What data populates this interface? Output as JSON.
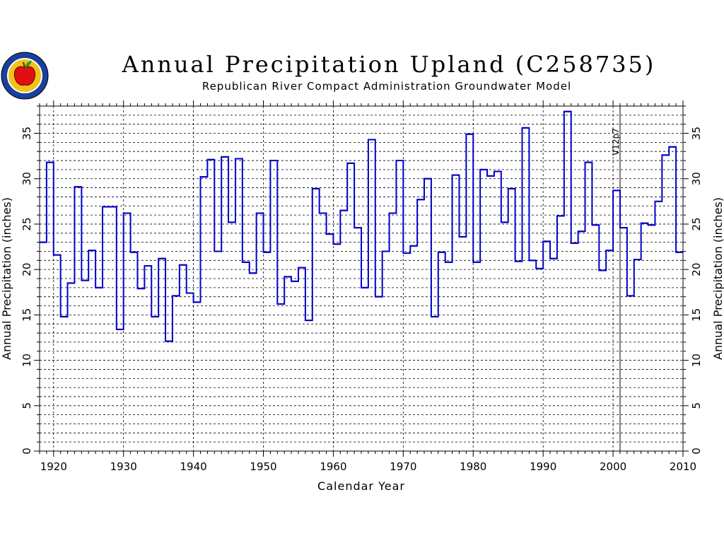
{
  "title": "Annual Precipitation Upland (C258735)",
  "subtitle": "Republican River Compact Administration Groundwater Model",
  "logo": {
    "icon": "apple-seal-icon",
    "apple_color": "#e01010",
    "ring_color": "#1a3f9c",
    "field_color": "#f2c21a"
  },
  "colors": {
    "line": "#0000c8",
    "grid": "#000000"
  },
  "chart_data": {
    "type": "line",
    "style": "step",
    "title": "Annual Precipitation Upland (C258735)",
    "subtitle": "Republican River Compact Administration Groundwater Model",
    "xlabel": "Calendar Year",
    "ylabel_left": "Annual  Precipitation  (inches)",
    "ylabel_right": "Annual  Precipitation  (inches)",
    "xlim": [
      1918,
      2010
    ],
    "ylim": [
      0,
      38
    ],
    "xticks": [
      1920,
      1930,
      1940,
      1950,
      1960,
      1970,
      1980,
      1990,
      2000,
      2010
    ],
    "yticks": [
      0,
      5,
      10,
      15,
      20,
      25,
      30,
      35
    ],
    "x_minor_gridlines": [
      1920,
      1930,
      1940,
      1950,
      1960,
      1970,
      1980,
      1990,
      2000,
      2010
    ],
    "y_gridline_step": 1,
    "grid": true,
    "annotation": {
      "label": "V12p7",
      "x": 2001
    },
    "series": [
      {
        "x": [
          1918,
          1919,
          1920,
          1921,
          1922,
          1923,
          1924,
          1925,
          1926,
          1927,
          1928,
          1929,
          1930,
          1931,
          1932,
          1933,
          1934,
          1935,
          1936,
          1937,
          1938,
          1939,
          1940,
          1941,
          1942,
          1943,
          1944,
          1945,
          1946,
          1947,
          1948,
          1949,
          1950,
          1951,
          1952,
          1953,
          1954,
          1955,
          1956,
          1957,
          1958,
          1959,
          1960,
          1961,
          1962,
          1963,
          1964,
          1965,
          1966,
          1967,
          1968,
          1969,
          1970,
          1971,
          1972,
          1973,
          1974,
          1975,
          1976,
          1977,
          1978,
          1979,
          1980,
          1981,
          1982,
          1983,
          1984,
          1985,
          1986,
          1987,
          1988,
          1989,
          1990,
          1991,
          1992,
          1993,
          1994,
          1995,
          1996,
          1997,
          1998,
          1999,
          2000,
          2001,
          2002,
          2003,
          2004,
          2005,
          2006,
          2007,
          2008,
          2009
        ],
        "values": [
          23.0,
          31.8,
          21.6,
          14.8,
          18.5,
          29.1,
          18.8,
          22.1,
          18.0,
          26.9,
          26.9,
          13.4,
          26.2,
          21.9,
          17.9,
          20.4,
          14.8,
          21.2,
          12.1,
          17.1,
          20.5,
          17.4,
          16.4,
          30.2,
          32.1,
          22.0,
          32.4,
          25.2,
          32.2,
          20.8,
          19.6,
          26.2,
          21.9,
          32.0,
          16.2,
          19.2,
          18.7,
          20.2,
          14.4,
          28.9,
          26.2,
          23.9,
          22.8,
          26.5,
          31.7,
          24.6,
          18.0,
          34.3,
          17.0,
          22.0,
          26.2,
          32.0,
          21.8,
          22.6,
          27.7,
          30.0,
          14.8,
          21.9,
          20.8,
          30.4,
          23.6,
          34.9,
          20.8,
          31.0,
          30.3,
          30.8,
          25.2,
          28.9,
          20.9,
          35.6,
          21.0,
          20.1,
          23.1,
          21.2,
          25.9,
          37.4,
          22.9,
          24.2,
          31.8,
          24.9,
          19.9,
          22.1,
          28.7,
          24.6,
          17.1,
          21.1,
          25.1,
          24.9,
          27.5,
          32.6,
          33.5,
          21.9
        ]
      }
    ]
  }
}
